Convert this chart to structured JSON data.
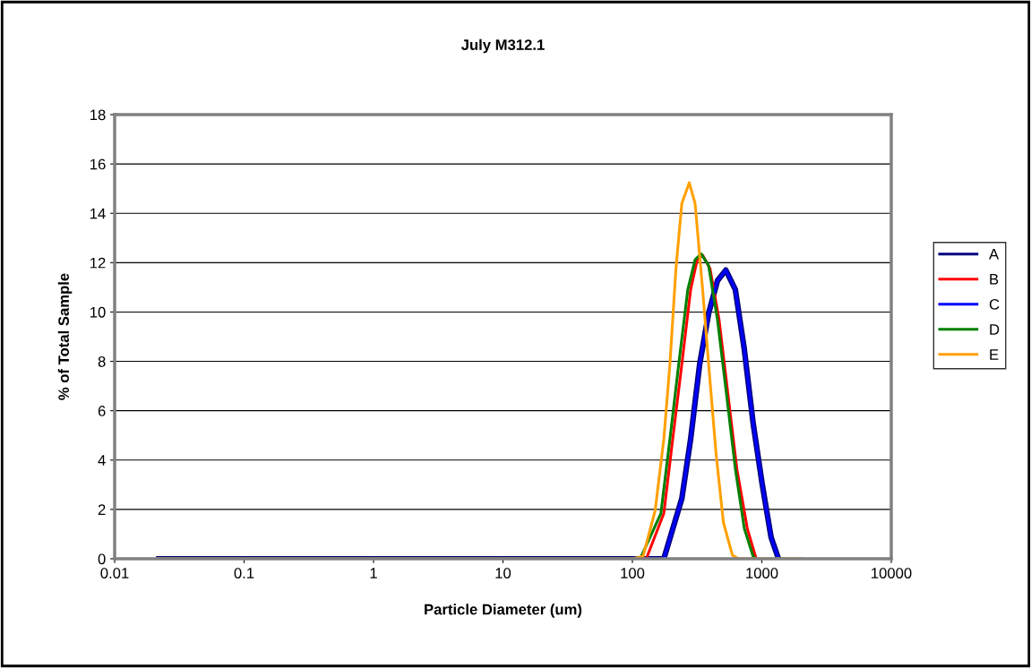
{
  "chart_data": {
    "type": "line",
    "title": "July M312.1",
    "xlabel": "Particle Diameter (um)",
    "ylabel": "% of Total Sample",
    "log": "x",
    "xlim": [
      0.01,
      10000
    ],
    "xticks": [
      0.01,
      0.1,
      1,
      10,
      100,
      1000,
      10000
    ],
    "ylim": [
      0,
      18
    ],
    "yticks": [
      0,
      2,
      4,
      6,
      8,
      10,
      12,
      14,
      16,
      18
    ],
    "grid": "y",
    "legend": "right",
    "marker": "none",
    "line_style": "solid",
    "series": [
      {
        "name": "A",
        "color": "#000080",
        "x": [
          0.022,
          175,
          241,
          282,
          331,
          388,
          454,
          527,
          624,
          732,
          858,
          1005,
          1179,
          1345
        ],
        "values": [
          0,
          0,
          2.44,
          4.86,
          7.89,
          9.94,
          11.27,
          11.7,
          10.91,
          8.49,
          5.47,
          3.05,
          0.87,
          0
        ]
      },
      {
        "name": "B",
        "color": "#ff0000",
        "x": [
          0.022,
          128,
          175,
          205,
          241,
          282,
          317,
          349,
          398,
          467,
          547,
          641,
          772,
          904
        ],
        "values": [
          0,
          0,
          1.84,
          4.86,
          7.89,
          10.91,
          12.12,
          12.3,
          11.76,
          9.7,
          6.68,
          3.65,
          1.23,
          0
        ]
      },
      {
        "name": "C",
        "color": "#0000ff",
        "x": [
          0.022,
          175,
          241,
          282,
          331,
          388,
          454,
          527,
          624,
          732,
          858,
          1005,
          1179,
          1345
        ],
        "values": [
          0,
          0,
          2.44,
          4.86,
          7.89,
          9.94,
          11.27,
          11.7,
          10.91,
          8.49,
          5.47,
          3.05,
          0.87,
          0
        ]
      },
      {
        "name": "D",
        "color": "#008000",
        "x": [
          0.022,
          115,
          166,
          195,
          228,
          268,
          305,
          340,
          388,
          454,
          533,
          624,
          732,
          858,
          904
        ],
        "values": [
          0,
          0,
          1.84,
          4.86,
          7.89,
          10.91,
          12.12,
          12.36,
          11.88,
          9.7,
          6.68,
          3.65,
          1.23,
          0.08,
          0
        ]
      },
      {
        "name": "E",
        "color": "#ffa000",
        "x": [
          0.022,
          100,
          121,
          150,
          175,
          195,
          217,
          241,
          275,
          305,
          349,
          388,
          443,
          505,
          592,
          659,
          2040
        ],
        "values": [
          0,
          0,
          0.1,
          1.96,
          4.86,
          7.9,
          11.76,
          14.4,
          15.24,
          14.4,
          10.9,
          7.9,
          4.26,
          1.47,
          0.15,
          0,
          0
        ]
      }
    ]
  }
}
